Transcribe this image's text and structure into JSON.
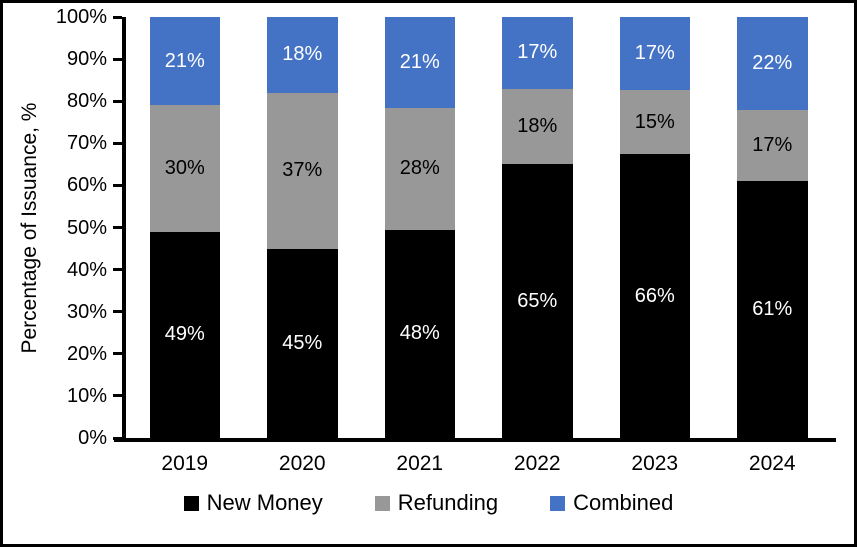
{
  "chart_data": {
    "type": "bar",
    "stacked": true,
    "title": "",
    "xlabel": "",
    "ylabel": "Percentage of Issuance, %",
    "ylim": [
      0,
      100
    ],
    "yticks": [
      "0%",
      "10%",
      "20%",
      "30%",
      "40%",
      "50%",
      "60%",
      "70%",
      "80%",
      "90%",
      "100%"
    ],
    "grid": false,
    "legend_position": "bottom",
    "value_suffix": "%",
    "categories": [
      "2019",
      "2020",
      "2021",
      "2022",
      "2023",
      "2024"
    ],
    "series": [
      {
        "name": "New Money",
        "color": "#000000",
        "label_color": "#ffffff",
        "values": [
          49,
          45,
          48,
          65,
          66,
          61
        ]
      },
      {
        "name": "Refunding",
        "color": "#989898",
        "label_color": "#000000",
        "values": [
          30,
          37,
          28,
          18,
          15,
          17
        ]
      },
      {
        "name": "Combined",
        "color": "#4472C4",
        "label_color": "#ffffff",
        "values": [
          21,
          18,
          21,
          17,
          17,
          22
        ]
      }
    ],
    "colors": {
      "axis": "#000000",
      "background": "#ffffff",
      "frame_border": "#000000"
    }
  }
}
